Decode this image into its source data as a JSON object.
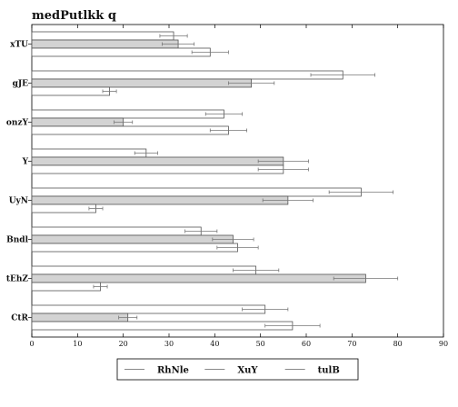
{
  "chart_data": {
    "type": "bar",
    "orientation": "horizontal",
    "title": "medPutlkk q",
    "xlabel": "",
    "ylabel": "",
    "xlim": [
      0,
      90
    ],
    "xticks": [
      "0",
      "10",
      "20",
      "30",
      "40",
      "50",
      "60",
      "70",
      "80",
      "90"
    ],
    "grid": false,
    "legend_position": "bottom",
    "categories": [
      "xTU",
      "gJE",
      "onzY",
      "Y",
      "UyN",
      "Bndl",
      "tEhZ",
      "CtR"
    ],
    "series": [
      {
        "name": "RhNle",
        "fill": "#ffffff",
        "values": [
          31,
          68,
          42,
          25,
          72,
          37,
          49,
          51
        ],
        "errors": [
          3,
          7,
          4,
          2.5,
          7,
          3.5,
          5,
          5
        ]
      },
      {
        "name": "XuY",
        "fill": "#d3d3d3",
        "values": [
          32,
          48,
          20,
          55,
          56,
          44,
          73,
          21
        ],
        "errors": [
          3.5,
          5,
          2,
          5.5,
          5.5,
          4.5,
          7,
          2
        ]
      },
      {
        "name": "tulB",
        "fill": "#ffffff",
        "values": [
          39,
          17,
          43,
          55,
          14,
          45,
          15,
          57
        ],
        "errors": [
          4,
          1.5,
          4,
          5.5,
          1.5,
          4.5,
          1.5,
          6
        ]
      }
    ]
  }
}
